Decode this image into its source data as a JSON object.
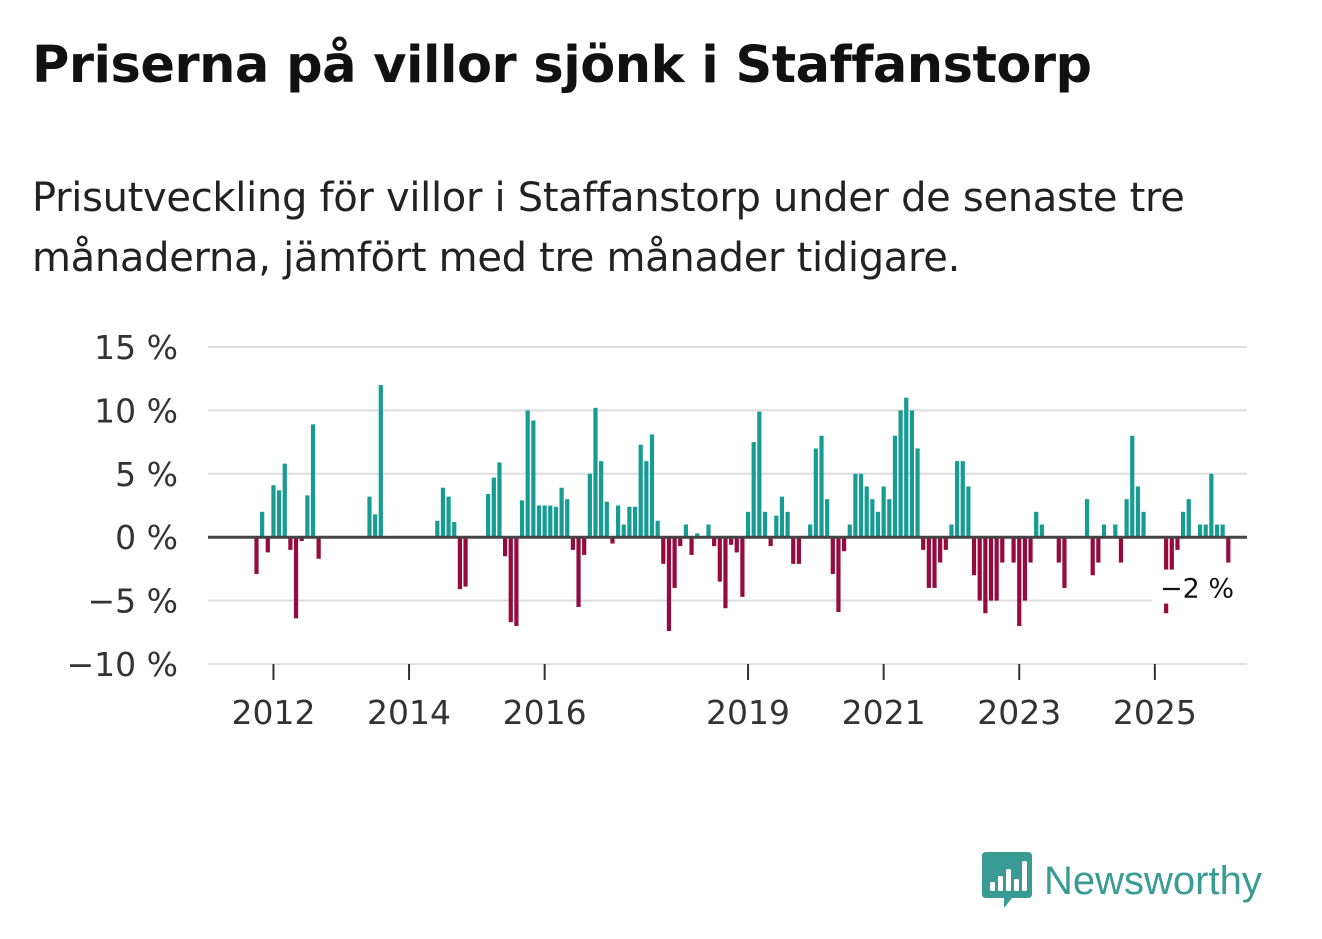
{
  "title": "Priserna på villor sjönk i Staffanstorp",
  "subtitle": "Prisutveckling för villor i Staffanstorp under de senaste tre månaderna, jämfört med tre månader tidigare.",
  "brand": "Newsworthy",
  "colors": {
    "positive": "#169c92",
    "negative": "#960a3e",
    "grid": "#dddddd",
    "zero_line": "#444444",
    "logo": "#3a9a94"
  },
  "chart_data": {
    "type": "bar",
    "title": "Priserna på villor sjönk i Staffanstorp",
    "xlabel": "",
    "ylabel": "",
    "ylim": [
      -10,
      15
    ],
    "yticks": [
      15,
      10,
      5,
      0,
      -5,
      -10
    ],
    "ytick_labels": [
      "15 %",
      "10 %",
      "5 %",
      "0 %",
      "−5 %",
      "−10 %"
    ],
    "xticks": [
      "2012",
      "2014",
      "2016",
      "2019",
      "2021",
      "2023",
      "2025"
    ],
    "x_start": "2011-10",
    "last_value_label": "−2 %",
    "series": [
      {
        "name": "Prisutveckling",
        "unit": "%",
        "values": [
          -2.9,
          2.0,
          -1.2,
          4.1,
          3.7,
          5.8,
          -1.0,
          -6.4,
          -0.3,
          3.3,
          8.9,
          -1.7,
          null,
          null,
          null,
          null,
          null,
          null,
          null,
          null,
          3.2,
          1.8,
          12.0,
          null,
          null,
          null,
          null,
          null,
          null,
          null,
          null,
          null,
          1.3,
          3.9,
          3.2,
          1.2,
          -4.1,
          -3.9,
          null,
          null,
          null,
          3.4,
          4.7,
          5.9,
          -1.5,
          -6.7,
          -7.0,
          2.9,
          10.0,
          9.2,
          2.5,
          2.5,
          2.5,
          2.4,
          3.9,
          3.0,
          -1.0,
          -5.5,
          -1.4,
          5.0,
          10.2,
          6.0,
          2.8,
          -0.5,
          2.5,
          1.0,
          2.4,
          2.4,
          7.3,
          6.0,
          8.1,
          1.3,
          -2.1,
          -7.4,
          -4.0,
          -0.7,
          1.0,
          -1.4,
          0.3,
          null,
          1.0,
          -0.7,
          -3.5,
          -5.6,
          -0.6,
          -1.2,
          -4.7,
          2.0,
          7.5,
          9.9,
          2.0,
          -0.7,
          1.7,
          3.2,
          2.0,
          -2.1,
          -2.1,
          null,
          1.0,
          7.0,
          8.0,
          3.0,
          -2.9,
          -5.9,
          -1.1,
          1.0,
          5.0,
          5.0,
          4.0,
          3.0,
          2.0,
          4.0,
          3.0,
          8.0,
          10.0,
          11.0,
          10.0,
          7.0,
          -1.0,
          -4.0,
          -4.0,
          -2.0,
          -1.0,
          1.0,
          6.0,
          6.0,
          4.0,
          -3.0,
          -5.0,
          -6.0,
          -5.0,
          -5.0,
          -2.0,
          null,
          -2.0,
          -7.0,
          -5.0,
          -2.0,
          2.0,
          1.0,
          null,
          null,
          -2.0,
          -4.0,
          null,
          null,
          null,
          3.0,
          -3.0,
          -2.0,
          1.0,
          null,
          1.0,
          -2.0,
          3.0,
          8.0,
          4.0,
          2.0,
          null,
          null,
          null,
          -6.0,
          -4.0,
          -1.0,
          2.0,
          3.0,
          null,
          1.0,
          1.0,
          5.0,
          1.0,
          1.0,
          -2.0
        ]
      }
    ]
  }
}
